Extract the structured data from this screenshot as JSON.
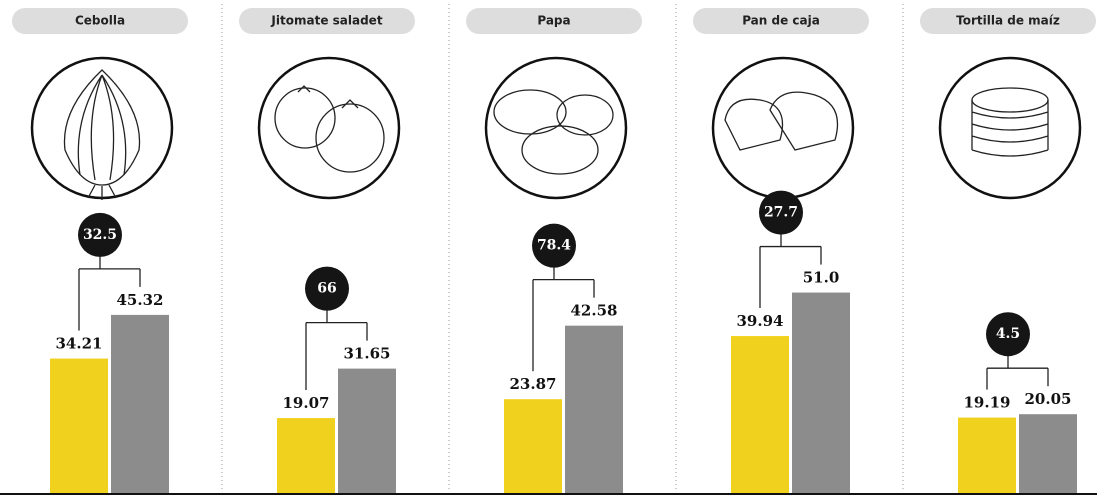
{
  "chart_data": {
    "type": "bar",
    "categories": [
      "Cebolla",
      "Jitomate saladet",
      "Papa",
      "Pan de caja",
      "Tortilla de maíz"
    ],
    "series": [
      {
        "color": "#f0d21e",
        "values": [
          34.21,
          19.07,
          23.87,
          39.94,
          19.19
        ]
      },
      {
        "color": "#8c8c8c",
        "values": [
          45.32,
          31.65,
          42.58,
          51.0,
          20.05
        ],
        "value_labels": [
          "45.32",
          "31.65",
          "42.58",
          "51.0",
          "20.05"
        ]
      }
    ],
    "changes": [
      32.5,
      66,
      78.4,
      27.7,
      4.5
    ]
  }
}
